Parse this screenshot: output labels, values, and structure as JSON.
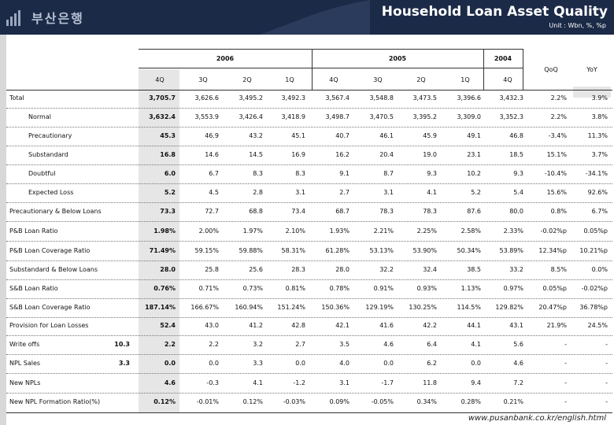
{
  "header": {
    "bank_name": "부산은행",
    "title": "Household Loan Asset Quality",
    "unit": "Unit : Wbn, %, %p"
  },
  "columns": {
    "years": [
      "2006",
      "2005",
      "2004"
    ],
    "quarters": [
      "4Q",
      "3Q",
      "2Q",
      "1Q",
      "4Q",
      "3Q",
      "2Q",
      "1Q",
      "4Q"
    ],
    "qoq": "QoQ",
    "yoy": "YoY"
  },
  "rows": [
    {
      "label": "Total",
      "extra": "",
      "values": [
        "3,705.7",
        "3,626.6",
        "3,495.2",
        "3,492.3",
        "3,567.4",
        "3,548.8",
        "3,473.5",
        "3,396.6",
        "3,432.3",
        "2.2%",
        "3.9%"
      ]
    },
    {
      "label": "Normal",
      "extra": "",
      "values": [
        "3,632.4",
        "3,553.9",
        "3,426.4",
        "3,418.9",
        "3,498.7",
        "3,470.5",
        "3,395.2",
        "3,309.0",
        "3,352.3",
        "2.2%",
        "3.8%"
      ]
    },
    {
      "label": "Precautionary",
      "extra": "",
      "values": [
        "45.3",
        "46.9",
        "43.2",
        "45.1",
        "40.7",
        "46.1",
        "45.9",
        "49.1",
        "46.8",
        "-3.4%",
        "11.3%"
      ]
    },
    {
      "label": "Substandard",
      "extra": "",
      "values": [
        "16.8",
        "14.6",
        "14.5",
        "16.9",
        "16.2",
        "20.4",
        "19.0",
        "23.1",
        "18.5",
        "15.1%",
        "3.7%"
      ]
    },
    {
      "label": "Doubtful",
      "extra": "",
      "values": [
        "6.0",
        "6.7",
        "8.3",
        "8.3",
        "9.1",
        "8.7",
        "9.3",
        "10.2",
        "9.3",
        "-10.4%",
        "-34.1%"
      ]
    },
    {
      "label": "Expected Loss",
      "extra": "",
      "values": [
        "5.2",
        "4.5",
        "2.8",
        "3.1",
        "2.7",
        "3.1",
        "4.1",
        "5.2",
        "5.4",
        "15.6%",
        "92.6%"
      ]
    },
    {
      "label": "Precautionary & Below Loans",
      "extra": "",
      "values": [
        "73.3",
        "72.7",
        "68.8",
        "73.4",
        "68.7",
        "78.3",
        "78.3",
        "87.6",
        "80.0",
        "0.8%",
        "6.7%"
      ]
    },
    {
      "label": "P&B Loan Ratio",
      "extra": "",
      "values": [
        "1.98%",
        "2.00%",
        "1.97%",
        "2.10%",
        "1.93%",
        "2.21%",
        "2.25%",
        "2.58%",
        "2.33%",
        "-0.02%p",
        "0.05%p"
      ]
    },
    {
      "label": "P&B Loan Coverage Ratio",
      "extra": "",
      "values": [
        "71.49%",
        "59.15%",
        "59.88%",
        "58.31%",
        "61.28%",
        "53.13%",
        "53.90%",
        "50.34%",
        "53.89%",
        "12.34%p",
        "10.21%p"
      ]
    },
    {
      "label": "Substandard & Below Loans",
      "extra": "",
      "values": [
        "28.0",
        "25.8",
        "25.6",
        "28.3",
        "28.0",
        "32.2",
        "32.4",
        "38.5",
        "33.2",
        "8.5%",
        "0.0%"
      ]
    },
    {
      "label": "S&B Loan Ratio",
      "extra": "",
      "values": [
        "0.76%",
        "0.71%",
        "0.73%",
        "0.81%",
        "0.78%",
        "0.91%",
        "0.93%",
        "1.13%",
        "0.97%",
        "0.05%p",
        "-0.02%p"
      ]
    },
    {
      "label": "S&B Loan Coverage Ratio",
      "extra": "",
      "values": [
        "187.14%",
        "166.67%",
        "160.94%",
        "151.24%",
        "150.36%",
        "129.19%",
        "130.25%",
        "114.5%",
        "129.82%",
        "20.47%p",
        "36.78%p"
      ]
    },
    {
      "label": "Provision for Loan Losses",
      "extra": "",
      "values": [
        "52.4",
        "43.0",
        "41.2",
        "42.8",
        "42.1",
        "41.6",
        "42.2",
        "44.1",
        "43.1",
        "21.9%",
        "24.5%"
      ]
    },
    {
      "label": "Write offs",
      "extra": "10.3",
      "values": [
        "2.2",
        "2.2",
        "3.2",
        "2.7",
        "3.5",
        "4.6",
        "6.4",
        "4.1",
        "5.6",
        "-",
        "-"
      ]
    },
    {
      "label": "NPL Sales",
      "extra": "3.3",
      "values": [
        "0.0",
        "0.0",
        "3.3",
        "0.0",
        "4.0",
        "0.0",
        "6.2",
        "0.0",
        "4.6",
        "-",
        "-"
      ]
    },
    {
      "label": "New NPLs",
      "extra": "",
      "values": [
        "4.6",
        "-0.3",
        "4.1",
        "-1.2",
        "3.1",
        "-1.7",
        "11.8",
        "9.4",
        "7.2",
        "-",
        "-"
      ]
    },
    {
      "label": "New NPL Formation Ratio(%)",
      "extra": "",
      "values": [
        "0.12%",
        "-0.01%",
        "0.12%",
        "-0.03%",
        "0.09%",
        "-0.05%",
        "0.34%",
        "0.28%",
        "0.21%",
        "-",
        "-"
      ]
    }
  ],
  "footer": "www.pusanbank.co.kr/english.html"
}
